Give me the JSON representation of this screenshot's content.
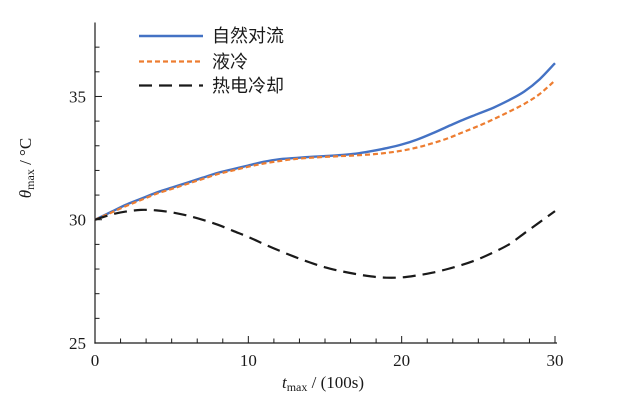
{
  "chart_data": {
    "type": "line",
    "title": "",
    "xlabel": {
      "symbol": "t",
      "subscript": "max",
      "suffix": " / (100s)"
    },
    "ylabel": {
      "symbol": "θ",
      "subscript": "max",
      "suffix": " / °C"
    },
    "xlim": [
      0,
      30
    ],
    "ylim": [
      25,
      38
    ],
    "x_ticks": [
      0,
      10,
      20,
      30
    ],
    "y_ticks": [
      25,
      30,
      35
    ],
    "x_minor_divisions_per_major": 6,
    "y_minor_step": 1,
    "grid": false,
    "legend_position": "top-left-inside",
    "axis_color": "#1a1a1a",
    "x": [
      0,
      1,
      2,
      3,
      4,
      5,
      6,
      7,
      8,
      9,
      10,
      11,
      12,
      13,
      14,
      15,
      16,
      17,
      18,
      19,
      20,
      21,
      22,
      23,
      24,
      25,
      26,
      27,
      28,
      29,
      30
    ],
    "series": [
      {
        "name": "自然对流",
        "color": "#4472C4",
        "dash": "solid",
        "values": [
          30.0,
          30.3,
          30.6,
          30.85,
          31.1,
          31.3,
          31.5,
          31.7,
          31.9,
          32.05,
          32.2,
          32.35,
          32.45,
          32.5,
          32.55,
          32.58,
          32.62,
          32.68,
          32.78,
          32.9,
          33.05,
          33.25,
          33.5,
          33.78,
          34.05,
          34.3,
          34.55,
          34.85,
          35.2,
          35.7,
          36.35
        ]
      },
      {
        "name": "液冷",
        "color": "#ED7D31",
        "dash": "short-dash",
        "values": [
          30.0,
          30.27,
          30.55,
          30.8,
          31.05,
          31.25,
          31.45,
          31.65,
          31.85,
          32.0,
          32.15,
          32.28,
          32.38,
          32.46,
          32.51,
          32.55,
          32.58,
          32.61,
          32.65,
          32.71,
          32.8,
          32.93,
          33.1,
          33.3,
          33.55,
          33.8,
          34.08,
          34.38,
          34.7,
          35.1,
          35.65
        ]
      },
      {
        "name": "热电冷却",
        "color": "#1a1a1a",
        "dash": "long-dash",
        "values": [
          30.0,
          30.2,
          30.33,
          30.4,
          30.38,
          30.3,
          30.17,
          30.0,
          29.8,
          29.55,
          29.3,
          29.02,
          28.75,
          28.5,
          28.27,
          28.07,
          27.92,
          27.8,
          27.7,
          27.65,
          27.66,
          27.74,
          27.85,
          28.0,
          28.18,
          28.4,
          28.68,
          29.0,
          29.45,
          29.9,
          30.35
        ]
      }
    ]
  }
}
